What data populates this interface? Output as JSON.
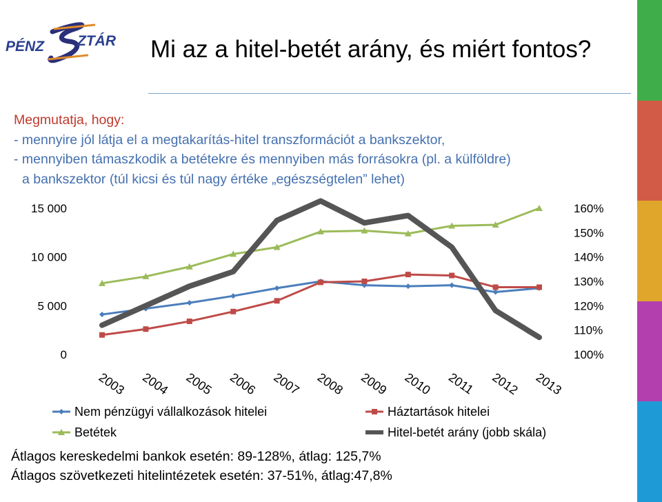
{
  "slide": {
    "title": "Mi az a hitel-betét arány, és miért fontos?",
    "logo_text": "PÉNZSZTÁR",
    "stripe_colors": [
      "#3fae4a",
      "#d15b46",
      "#e0a62c",
      "#b33fae",
      "#1e9bd7"
    ]
  },
  "intro": {
    "lead": "Megmutatja, hogy:",
    "line1": "- mennyire jól látja el a megtakarítás-hitel transzformációt a bankszektor,",
    "line2": "- mennyiben támaszkodik a betétekre és mennyiben más forrásokra (pl. a külföldre)",
    "line3": "a bankszektor (túl kicsi és túl nagy értéke „egészségtelen” lehet)"
  },
  "chart_data": {
    "type": "line",
    "categories": [
      "2003",
      "2004",
      "2005",
      "2006",
      "2007",
      "2008",
      "2009",
      "2010",
      "2011",
      "2012",
      "2013"
    ],
    "y_left": {
      "ticks": [
        "0",
        "5 000",
        "10 000",
        "15 000"
      ],
      "range": [
        0,
        15000
      ]
    },
    "y_right": {
      "ticks": [
        "100%",
        "110%",
        "120%",
        "130%",
        "140%",
        "150%",
        "160%"
      ],
      "range": [
        100,
        160
      ]
    },
    "grid": false,
    "legend_position": "bottom",
    "series": [
      {
        "name": "Nem pénzügyi vállalkozások hitelei",
        "axis": "left",
        "color": "#4a7ebb",
        "marker": "diamond",
        "values": [
          4100,
          4700,
          5300,
          6000,
          6800,
          7500,
          7100,
          7000,
          7100,
          6400,
          6800
        ]
      },
      {
        "name": "Háztartások hitelei",
        "axis": "left",
        "color": "#be4b48",
        "marker": "square",
        "values": [
          2000,
          2600,
          3400,
          4400,
          5500,
          7400,
          7500,
          8200,
          8100,
          6900,
          6900
        ]
      },
      {
        "name": "Betétek",
        "axis": "left",
        "color": "#9bbb59",
        "marker": "triangle",
        "values": [
          7300,
          8000,
          9000,
          10300,
          11000,
          12600,
          12700,
          12400,
          13200,
          13300,
          15000
        ]
      },
      {
        "name": "Hitel-betét arány (jobb skála)",
        "axis": "right",
        "color": "#555555",
        "marker": "none",
        "values": [
          112,
          120,
          128,
          134,
          155,
          163,
          154,
          157,
          144,
          118,
          107
        ]
      }
    ]
  },
  "footer": {
    "line1": "Átlagos kereskedelmi bankok esetén: 89-128%, átlag: 125,7%",
    "line2": "Átlagos szövetkezeti hitelintézetek esetén: 37-51%, átlag:47,8%"
  }
}
